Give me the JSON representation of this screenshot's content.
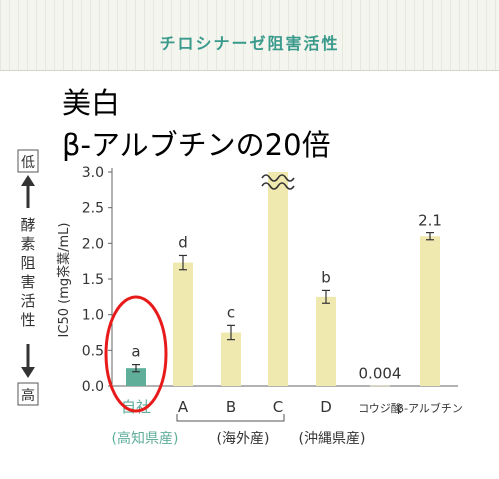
{
  "header": {
    "title": "チロシナーゼ阻害活性"
  },
  "overlay": {
    "line1": "美白",
    "line2": "β-アルブチンの20倍"
  },
  "side": {
    "low": "低",
    "high": "高",
    "vertical_text": "酵素阻害活性"
  },
  "colors": {
    "own": "#5fae9a",
    "others": "#efe9b0",
    "title": "#3a9a8c",
    "circle": "#e81b1b",
    "axis": "#666666"
  },
  "chart_data": {
    "type": "bar",
    "title": "チロシナーゼ阻害活性",
    "ylabel": "IC50 (mg茶葉/mL)",
    "ylim": [
      0,
      3.0
    ],
    "yticks": [
      "0.0",
      "0.5",
      "1.0",
      "1.5",
      "2.0",
      "2.5",
      "3.0"
    ],
    "categories": [
      "自社",
      "A",
      "B",
      "C",
      "D",
      "コウジ酸",
      "β-アルブチン"
    ],
    "values": [
      0.25,
      1.73,
      0.75,
      3.0,
      1.25,
      0.004,
      2.1
    ],
    "errors": [
      0.05,
      0.1,
      0.1,
      0,
      0.09,
      0,
      0.05
    ],
    "letters": [
      "a",
      "d",
      "c",
      "",
      "b",
      "",
      ""
    ],
    "value_labels": [
      "",
      "",
      "",
      "",
      "",
      "0.004",
      "2.1"
    ],
    "groups": [
      {
        "label": "(高知県産)",
        "from": 0,
        "to": 0
      },
      {
        "label": "(海外産)",
        "from": 1,
        "to": 3
      },
      {
        "label": "(沖縄県産)",
        "from": 4,
        "to": 4
      }
    ],
    "broken_axis_category": "C",
    "highlight": "自社",
    "grid": false
  }
}
